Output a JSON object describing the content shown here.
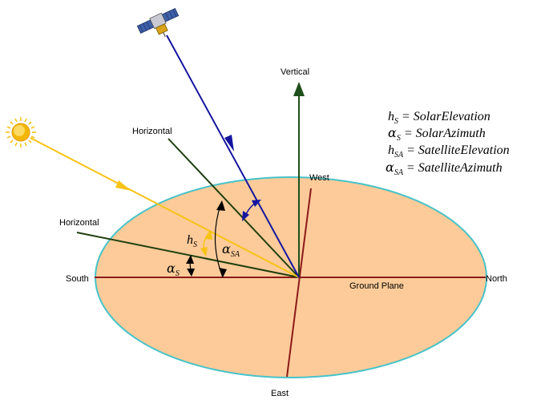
{
  "labels": {
    "vertical": "Vertical",
    "horizontal_upper": "Horizontal",
    "horizontal_lower": "Horizontal",
    "west": "West",
    "east": "East",
    "south": "South",
    "north": "North",
    "ground_plane": "Ground Plane"
  },
  "angle_labels": {
    "h_s": {
      "base": "h",
      "sub": "S"
    },
    "alpha_s": {
      "base": "α",
      "sub": "S"
    },
    "alpha_sa": {
      "base": "α",
      "sub": "SA"
    }
  },
  "legend": [
    {
      "symbol": "h",
      "sub": "S",
      "rhs": "= SolarElevation"
    },
    {
      "symbol": "α",
      "sub": "S",
      "rhs": "= SolarAzimuth"
    },
    {
      "symbol": "h",
      "sub": "SA",
      "rhs": "= SatelliteElevation"
    },
    {
      "symbol": "α",
      "sub": "SA",
      "rhs": "= SatelliteAzimuth"
    }
  ],
  "colors": {
    "ground_fill": "#FCCB99",
    "ground_stroke": "#47C3C9",
    "axis_lines": "#8B1A1A",
    "vertical": "#1F4F1A",
    "horizontal": "#1F3F0E",
    "sun_ray": "#F7C315",
    "satellite_ray": "#1515A0",
    "sun": "#F2B705"
  },
  "icons": {
    "sun": "sun-icon",
    "satellite": "satellite-icon"
  }
}
